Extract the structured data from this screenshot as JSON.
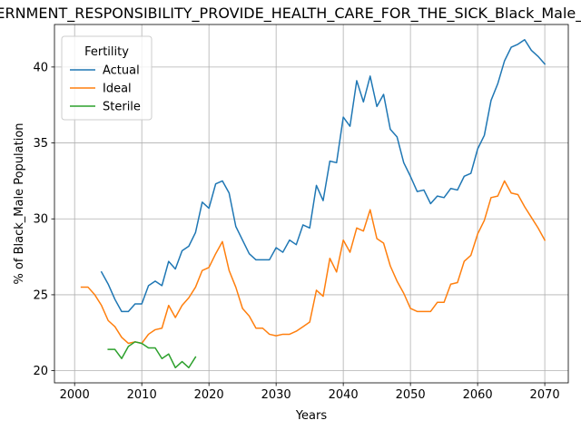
{
  "chart_data": {
    "type": "line",
    "title": "GOVERNMENT_RESPONSIBILITY_PROVIDE_HEALTH_CARE_FOR_THE_SICK_Black_Male_Population",
    "xlabel": "Years",
    "ylabel": "% of Black_Male Population",
    "xlim": [
      1997,
      2073.5
    ],
    "ylim": [
      19.2,
      42.8
    ],
    "xticks": [
      2000,
      2010,
      2020,
      2030,
      2040,
      2050,
      2060,
      2070
    ],
    "yticks": [
      20,
      25,
      30,
      35,
      40
    ],
    "grid": true,
    "legend": {
      "title": "Fertility",
      "position": "top-left"
    },
    "series": [
      {
        "name": "Actual",
        "color": "#1f77b4",
        "x": [
          2004,
          2005,
          2006,
          2007,
          2008,
          2009,
          2010,
          2011,
          2012,
          2013,
          2014,
          2015,
          2016,
          2017,
          2018,
          2019,
          2020,
          2021,
          2022,
          2023,
          2024,
          2025,
          2026,
          2027,
          2028,
          2029,
          2030,
          2031,
          2032,
          2033,
          2034,
          2035,
          2036,
          2037,
          2038,
          2039,
          2040,
          2041,
          2042,
          2043,
          2044,
          2045,
          2046,
          2047,
          2048,
          2049,
          2050,
          2051,
          2052,
          2053,
          2054,
          2055,
          2056,
          2057,
          2058,
          2059,
          2060,
          2061,
          2062,
          2063,
          2064,
          2065,
          2066,
          2067,
          2068,
          2069,
          2070
        ],
        "y": [
          26.5,
          25.7,
          24.7,
          23.9,
          23.9,
          24.4,
          24.4,
          25.6,
          25.9,
          25.6,
          27.2,
          26.7,
          27.9,
          28.2,
          29.1,
          31.1,
          30.7,
          32.3,
          32.5,
          31.7,
          29.5,
          28.6,
          27.7,
          27.3,
          27.3,
          27.3,
          28.1,
          27.8,
          28.6,
          28.3,
          29.6,
          29.4,
          32.2,
          31.2,
          33.8,
          33.7,
          36.7,
          36.1,
          39.1,
          37.7,
          39.4,
          37.4,
          38.2,
          35.9,
          35.4,
          33.7,
          32.8,
          31.8,
          31.9,
          31.0,
          31.5,
          31.4,
          32.0,
          31.9,
          32.8,
          33.0,
          34.6,
          35.5,
          37.8,
          38.9,
          40.4,
          41.3,
          41.5,
          41.8,
          41.1,
          40.7,
          40.2
        ]
      },
      {
        "name": "Ideal",
        "color": "#ff7f0e",
        "x": [
          2001,
          2002,
          2003,
          2004,
          2005,
          2006,
          2007,
          2008,
          2009,
          2010,
          2011,
          2012,
          2013,
          2014,
          2015,
          2016,
          2017,
          2018,
          2019,
          2020,
          2021,
          2022,
          2023,
          2024,
          2025,
          2026,
          2027,
          2028,
          2029,
          2030,
          2031,
          2032,
          2033,
          2034,
          2035,
          2036,
          2037,
          2038,
          2039,
          2040,
          2041,
          2042,
          2043,
          2044,
          2045,
          2046,
          2047,
          2048,
          2049,
          2050,
          2051,
          2052,
          2053,
          2054,
          2055,
          2056,
          2057,
          2058,
          2059,
          2060,
          2061,
          2062,
          2063,
          2064,
          2065,
          2066,
          2067,
          2068,
          2069,
          2070
        ],
        "y": [
          25.5,
          25.5,
          25.0,
          24.3,
          23.3,
          22.9,
          22.2,
          21.8,
          21.9,
          21.8,
          22.4,
          22.7,
          22.8,
          24.3,
          23.5,
          24.3,
          24.8,
          25.5,
          26.6,
          26.8,
          27.7,
          28.5,
          26.6,
          25.5,
          24.1,
          23.6,
          22.8,
          22.8,
          22.4,
          22.3,
          22.4,
          22.4,
          22.6,
          22.9,
          23.2,
          25.3,
          24.9,
          27.4,
          26.5,
          28.6,
          27.8,
          29.4,
          29.2,
          30.6,
          28.7,
          28.4,
          26.9,
          25.9,
          25.1,
          24.1,
          23.9,
          23.9,
          23.9,
          24.5,
          24.5,
          25.7,
          25.8,
          27.2,
          27.6,
          29.0,
          29.9,
          31.4,
          31.5,
          32.5,
          31.7,
          31.6,
          30.8,
          30.1,
          29.4,
          28.6
        ]
      },
      {
        "name": "Sterile",
        "color": "#2ca02c",
        "x": [
          2005,
          2006,
          2007,
          2008,
          2009,
          2010,
          2011,
          2012,
          2013,
          2014,
          2015,
          2016,
          2017,
          2018
        ],
        "y": [
          21.4,
          21.4,
          20.8,
          21.6,
          21.9,
          21.8,
          21.5,
          21.5,
          20.8,
          21.1,
          20.2,
          20.6,
          20.2,
          20.9
        ]
      }
    ]
  }
}
